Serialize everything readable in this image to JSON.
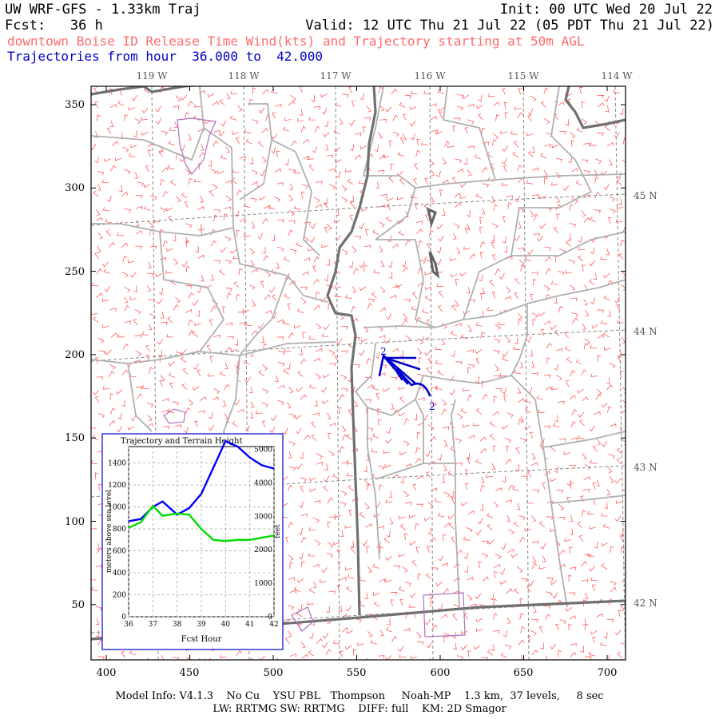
{
  "header": {
    "title": "UW WRF-GFS - 1.33km Traj",
    "init": "Init: 00 UTC Wed 20 Jul 22",
    "fcst_label": "Fcst:",
    "fcst_value": "36 h",
    "valid": "Valid: 12 UTC Thu 21 Jul 22 (05 PDT Thu 21 Jul 22)",
    "subtitle": "downtown Boise ID Release Time Wind(kts) and Trajectory starting at 50m AGL",
    "traj_label": "Trajectories from hour",
    "traj_from": "36.000",
    "traj_to_word": "to",
    "traj_to": "42.000"
  },
  "map": {
    "x_ticks": [
      "400",
      "450",
      "500",
      "550",
      "600",
      "650",
      "700"
    ],
    "y_ticks": [
      "350",
      "300",
      "250",
      "200",
      "150",
      "100",
      "50"
    ],
    "lon_labels": [
      "119 W",
      "118 W",
      "117 W",
      "116 W",
      "115 W",
      "114 W"
    ],
    "lat_labels": [
      "45 N",
      "44 N",
      "43 N",
      "42 N"
    ],
    "trajectory_markers": [
      "2",
      "2"
    ],
    "colors": {
      "wind_barbs": "#ff5a5a",
      "county_lines": "#b0b0b0",
      "state_lines": "#707070",
      "trajectory": "#0000cc",
      "lakes": "#b070c0"
    }
  },
  "inset": {
    "title": "Trajectory and Terrain Height",
    "ylabel_left": "meters above sea level",
    "ylabel_right": "feet",
    "xlabel": "Fcst Hour",
    "x_ticks": [
      "36",
      "37",
      "38",
      "39",
      "40",
      "41",
      "42"
    ],
    "y_left_ticks": [
      "0",
      "200",
      "400",
      "600",
      "800",
      "1000",
      "1200",
      "1400"
    ],
    "y_right_ticks": [
      "0",
      "1000",
      "2000",
      "3000",
      "4000",
      "5000"
    ]
  },
  "chart_data": {
    "type": "line",
    "title": "Trajectory and Terrain Height",
    "xlabel": "Fcst Hour",
    "ylabel": "meters above sea level",
    "xlim": [
      36,
      42
    ],
    "ylim": [
      0,
      1550
    ],
    "grid": true,
    "x": [
      36,
      36.5,
      37,
      37.4,
      38,
      38.5,
      39,
      39.5,
      40,
      40.5,
      41,
      41.5,
      42
    ],
    "series": [
      {
        "values": [
          870,
          890,
          1000,
          1050,
          930,
          990,
          1120,
          1360,
          1600,
          1550,
          1450,
          1380,
          1350
        ],
        "color": "#0000ff"
      },
      {
        "values": [
          810,
          860,
          1010,
          920,
          940,
          930,
          800,
          700,
          690,
          700,
          700,
          720,
          740
        ],
        "color": "#00dd00"
      }
    ]
  }
}
